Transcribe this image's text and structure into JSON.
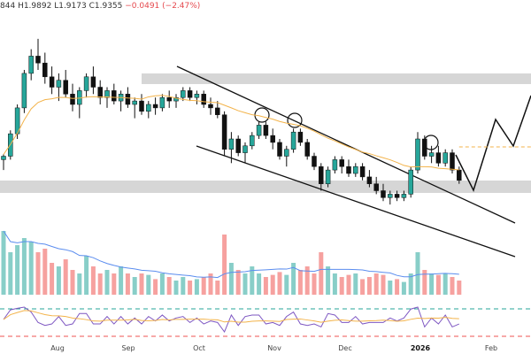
{
  "ohlc": {
    "open": "844",
    "high": "H1.9892",
    "low": "L1.9173",
    "close": "C1.9355",
    "change": "−0.0491 (−2.47%)"
  },
  "chart_data": {
    "type": "candlestick",
    "x_ticks": [
      {
        "label": "Aug",
        "bold": false
      },
      {
        "label": "Sep",
        "bold": false
      },
      {
        "label": "Oct",
        "bold": false
      },
      {
        "label": "Nov",
        "bold": false
      },
      {
        "label": "Dec",
        "bold": false
      },
      {
        "label": "2026",
        "bold": true
      },
      {
        "label": "Feb",
        "bold": false
      }
    ],
    "price_series": [
      {
        "i": 0,
        "o": 0.28,
        "h": 0.31,
        "l": 0.22,
        "c": 0.3
      },
      {
        "i": 1,
        "o": 0.3,
        "h": 0.45,
        "l": 0.28,
        "c": 0.43
      },
      {
        "i": 2,
        "o": 0.43,
        "h": 0.6,
        "l": 0.4,
        "c": 0.58
      },
      {
        "i": 3,
        "o": 0.58,
        "h": 0.8,
        "l": 0.55,
        "c": 0.78
      },
      {
        "i": 4,
        "o": 0.78,
        "h": 0.92,
        "l": 0.74,
        "c": 0.88
      },
      {
        "i": 5,
        "o": 0.88,
        "h": 0.98,
        "l": 0.8,
        "c": 0.84
      },
      {
        "i": 6,
        "o": 0.84,
        "h": 0.9,
        "l": 0.72,
        "c": 0.76
      },
      {
        "i": 7,
        "o": 0.76,
        "h": 0.82,
        "l": 0.66,
        "c": 0.7
      },
      {
        "i": 8,
        "o": 0.7,
        "h": 0.78,
        "l": 0.62,
        "c": 0.74
      },
      {
        "i": 9,
        "o": 0.74,
        "h": 0.8,
        "l": 0.64,
        "c": 0.66
      },
      {
        "i": 10,
        "o": 0.66,
        "h": 0.72,
        "l": 0.56,
        "c": 0.6
      },
      {
        "i": 11,
        "o": 0.6,
        "h": 0.7,
        "l": 0.52,
        "c": 0.68
      },
      {
        "i": 12,
        "o": 0.68,
        "h": 0.78,
        "l": 0.64,
        "c": 0.76
      },
      {
        "i": 13,
        "o": 0.76,
        "h": 0.82,
        "l": 0.66,
        "c": 0.7
      },
      {
        "i": 14,
        "o": 0.7,
        "h": 0.74,
        "l": 0.6,
        "c": 0.64
      },
      {
        "i": 15,
        "o": 0.64,
        "h": 0.7,
        "l": 0.58,
        "c": 0.68
      },
      {
        "i": 16,
        "o": 0.68,
        "h": 0.72,
        "l": 0.6,
        "c": 0.62
      },
      {
        "i": 17,
        "o": 0.62,
        "h": 0.68,
        "l": 0.56,
        "c": 0.66
      },
      {
        "i": 18,
        "o": 0.66,
        "h": 0.7,
        "l": 0.58,
        "c": 0.6
      },
      {
        "i": 19,
        "o": 0.6,
        "h": 0.64,
        "l": 0.52,
        "c": 0.62
      },
      {
        "i": 20,
        "o": 0.62,
        "h": 0.66,
        "l": 0.54,
        "c": 0.56
      },
      {
        "i": 21,
        "o": 0.56,
        "h": 0.62,
        "l": 0.52,
        "c": 0.6
      },
      {
        "i": 22,
        "o": 0.6,
        "h": 0.64,
        "l": 0.54,
        "c": 0.58
      },
      {
        "i": 23,
        "o": 0.58,
        "h": 0.66,
        "l": 0.56,
        "c": 0.64
      },
      {
        "i": 24,
        "o": 0.64,
        "h": 0.68,
        "l": 0.58,
        "c": 0.62
      },
      {
        "i": 25,
        "o": 0.62,
        "h": 0.66,
        "l": 0.58,
        "c": 0.64
      },
      {
        "i": 26,
        "o": 0.64,
        "h": 0.7,
        "l": 0.62,
        "c": 0.68
      },
      {
        "i": 27,
        "o": 0.68,
        "h": 0.7,
        "l": 0.62,
        "c": 0.64
      },
      {
        "i": 28,
        "o": 0.64,
        "h": 0.68,
        "l": 0.6,
        "c": 0.66
      },
      {
        "i": 29,
        "o": 0.66,
        "h": 0.68,
        "l": 0.58,
        "c": 0.6
      },
      {
        "i": 30,
        "o": 0.6,
        "h": 0.64,
        "l": 0.54,
        "c": 0.58
      },
      {
        "i": 31,
        "o": 0.58,
        "h": 0.62,
        "l": 0.52,
        "c": 0.54
      },
      {
        "i": 32,
        "o": 0.54,
        "h": 0.56,
        "l": 0.3,
        "c": 0.34
      },
      {
        "i": 33,
        "o": 0.34,
        "h": 0.44,
        "l": 0.26,
        "c": 0.4
      },
      {
        "i": 34,
        "o": 0.4,
        "h": 0.42,
        "l": 0.3,
        "c": 0.32
      },
      {
        "i": 35,
        "o": 0.32,
        "h": 0.38,
        "l": 0.26,
        "c": 0.36
      },
      {
        "i": 36,
        "o": 0.36,
        "h": 0.44,
        "l": 0.34,
        "c": 0.42
      },
      {
        "i": 37,
        "o": 0.42,
        "h": 0.5,
        "l": 0.4,
        "c": 0.48
      },
      {
        "i": 38,
        "o": 0.48,
        "h": 0.5,
        "l": 0.4,
        "c": 0.42
      },
      {
        "i": 39,
        "o": 0.42,
        "h": 0.46,
        "l": 0.34,
        "c": 0.38
      },
      {
        "i": 40,
        "o": 0.38,
        "h": 0.4,
        "l": 0.28,
        "c": 0.3
      },
      {
        "i": 41,
        "o": 0.3,
        "h": 0.36,
        "l": 0.24,
        "c": 0.34
      },
      {
        "i": 42,
        "o": 0.34,
        "h": 0.46,
        "l": 0.32,
        "c": 0.44
      },
      {
        "i": 43,
        "o": 0.44,
        "h": 0.46,
        "l": 0.36,
        "c": 0.38
      },
      {
        "i": 44,
        "o": 0.38,
        "h": 0.4,
        "l": 0.28,
        "c": 0.3
      },
      {
        "i": 45,
        "o": 0.3,
        "h": 0.32,
        "l": 0.22,
        "c": 0.24
      },
      {
        "i": 46,
        "o": 0.24,
        "h": 0.26,
        "l": 0.1,
        "c": 0.14
      },
      {
        "i": 47,
        "o": 0.14,
        "h": 0.24,
        "l": 0.12,
        "c": 0.22
      },
      {
        "i": 48,
        "o": 0.22,
        "h": 0.3,
        "l": 0.2,
        "c": 0.28
      },
      {
        "i": 49,
        "o": 0.28,
        "h": 0.3,
        "l": 0.2,
        "c": 0.24
      },
      {
        "i": 50,
        "o": 0.24,
        "h": 0.28,
        "l": 0.18,
        "c": 0.2
      },
      {
        "i": 51,
        "o": 0.2,
        "h": 0.26,
        "l": 0.18,
        "c": 0.24
      },
      {
        "i": 52,
        "o": 0.24,
        "h": 0.26,
        "l": 0.16,
        "c": 0.18
      },
      {
        "i": 53,
        "o": 0.18,
        "h": 0.22,
        "l": 0.12,
        "c": 0.14
      },
      {
        "i": 54,
        "o": 0.14,
        "h": 0.18,
        "l": 0.08,
        "c": 0.1
      },
      {
        "i": 55,
        "o": 0.1,
        "h": 0.14,
        "l": 0.04,
        "c": 0.06
      },
      {
        "i": 56,
        "o": 0.06,
        "h": 0.1,
        "l": 0.02,
        "c": 0.08
      },
      {
        "i": 57,
        "o": 0.08,
        "h": 0.1,
        "l": 0.04,
        "c": 0.06
      },
      {
        "i": 58,
        "o": 0.06,
        "h": 0.1,
        "l": 0.04,
        "c": 0.08
      },
      {
        "i": 59,
        "o": 0.08,
        "h": 0.24,
        "l": 0.06,
        "c": 0.22
      },
      {
        "i": 60,
        "o": 0.22,
        "h": 0.44,
        "l": 0.2,
        "c": 0.4
      },
      {
        "i": 61,
        "o": 0.4,
        "h": 0.42,
        "l": 0.28,
        "c": 0.3
      },
      {
        "i": 62,
        "o": 0.3,
        "h": 0.36,
        "l": 0.26,
        "c": 0.32
      },
      {
        "i": 63,
        "o": 0.32,
        "h": 0.36,
        "l": 0.24,
        "c": 0.26
      },
      {
        "i": 64,
        "o": 0.26,
        "h": 0.34,
        "l": 0.24,
        "c": 0.32
      },
      {
        "i": 65,
        "o": 0.32,
        "h": 0.34,
        "l": 0.2,
        "c": 0.22
      },
      {
        "i": 66,
        "o": 0.22,
        "h": 0.24,
        "l": 0.14,
        "c": 0.16
      }
    ],
    "volume": [
      0.9,
      0.6,
      0.7,
      0.8,
      0.75,
      0.6,
      0.65,
      0.45,
      0.4,
      0.5,
      0.35,
      0.3,
      0.55,
      0.4,
      0.3,
      0.35,
      0.3,
      0.4,
      0.3,
      0.25,
      0.3,
      0.28,
      0.22,
      0.3,
      0.25,
      0.2,
      0.25,
      0.2,
      0.22,
      0.25,
      0.3,
      0.2,
      0.85,
      0.45,
      0.35,
      0.3,
      0.4,
      0.3,
      0.25,
      0.28,
      0.32,
      0.28,
      0.45,
      0.35,
      0.4,
      0.3,
      0.6,
      0.4,
      0.3,
      0.25,
      0.28,
      0.3,
      0.22,
      0.25,
      0.3,
      0.28,
      0.2,
      0.22,
      0.18,
      0.3,
      0.6,
      0.35,
      0.3,
      0.28,
      0.3,
      0.25,
      0.2
    ],
    "colors": {
      "up": "#26a69a",
      "down": "#ef5350",
      "ma": "#f3b34a",
      "rsi": "#7e57c2",
      "zone": "#d6d6d6",
      "rsi_upper": "#26a69a",
      "rsi_lower": "#ef5350"
    }
  }
}
